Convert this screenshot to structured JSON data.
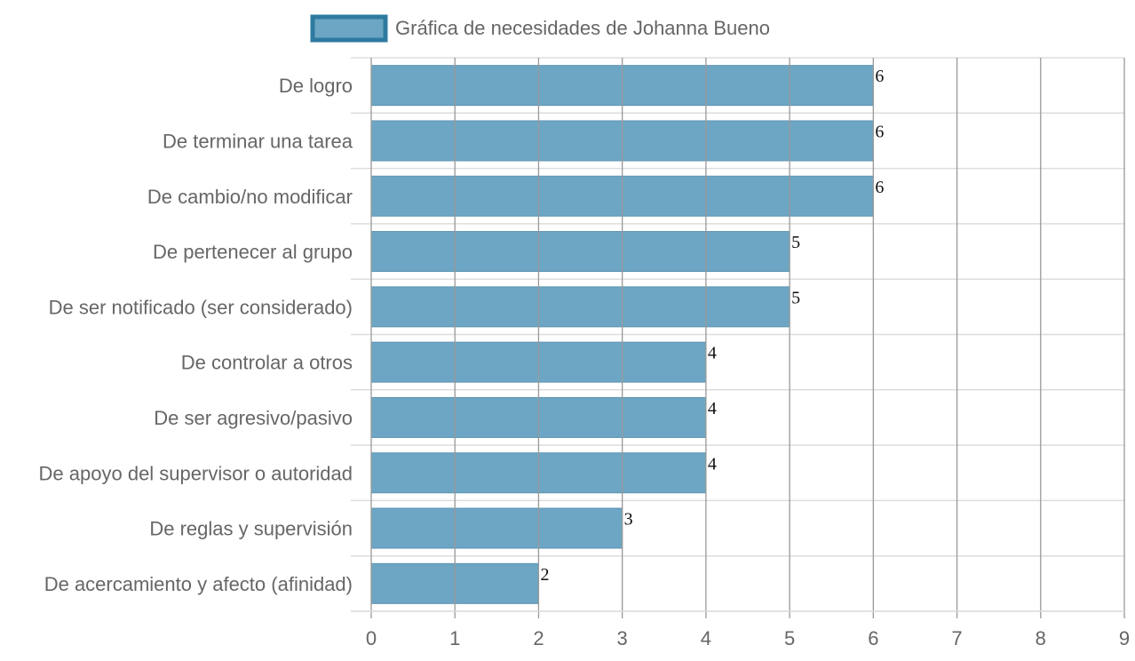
{
  "chart_data": {
    "type": "bar",
    "orientation": "horizontal",
    "categories": [
      "De logro",
      "De terminar una tarea",
      "De cambio/no modificar",
      "De pertenecer al grupo",
      "De ser notificado (ser considerado)",
      "De controlar a otros",
      "De ser agresivo/pasivo",
      "De apoyo del supervisor o autoridad",
      "De reglas y supervisión",
      "De acercamiento y afecto (afinidad)"
    ],
    "series": [
      {
        "name": "Gráfica de necesidades de Johanna Bueno",
        "values": [
          6,
          6,
          6,
          5,
          5,
          4,
          4,
          4,
          3,
          2
        ]
      }
    ],
    "xlim": [
      0,
      9
    ],
    "xticks": [
      "0",
      "1",
      "2",
      "3",
      "4",
      "5",
      "6",
      "7",
      "8",
      "9"
    ],
    "grid": true,
    "legend": "top",
    "colors": {
      "bar_fill": "#6ca6c4",
      "bar_border": "#5f95b2",
      "legend_border": "#2e7aa0",
      "grid": "#999999",
      "grid_light": "#dddddd"
    }
  }
}
